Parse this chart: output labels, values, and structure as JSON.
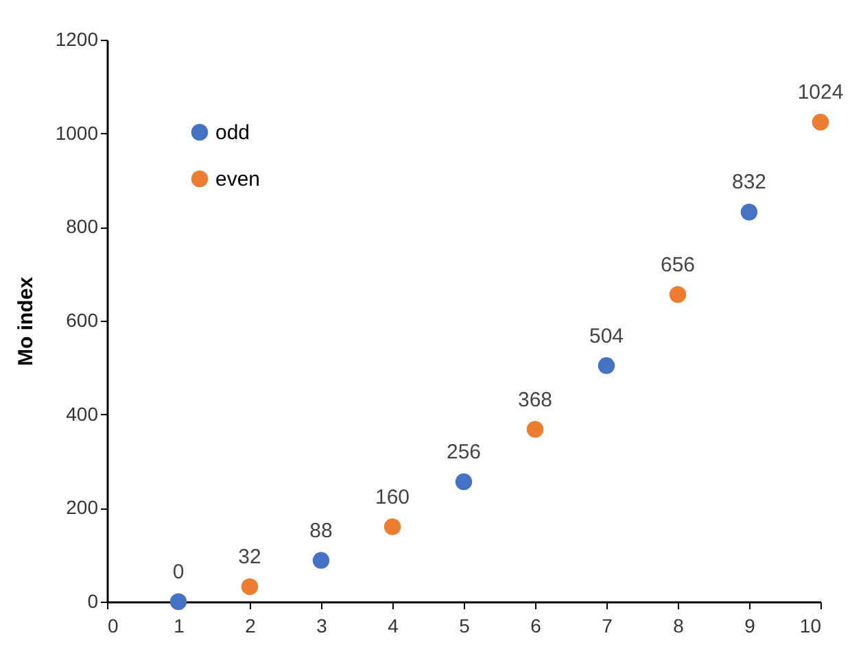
{
  "chart_data": {
    "type": "scatter",
    "ylabel": "Mo index",
    "series": [
      {
        "name": "odd",
        "color": "#4472c4",
        "x": [
          1,
          3,
          5,
          7,
          9
        ],
        "values": [
          0,
          88,
          256,
          504,
          832
        ]
      },
      {
        "name": "even",
        "color": "#ed7d31",
        "x": [
          2,
          4,
          6,
          8,
          10
        ],
        "values": [
          32,
          160,
          368,
          656,
          1024
        ]
      }
    ],
    "xlim": [
      0,
      10
    ],
    "xticks": [
      0,
      1,
      2,
      3,
      4,
      5,
      6,
      7,
      8,
      9,
      10
    ],
    "ylim": [
      0,
      1200
    ],
    "yticks": [
      0,
      200,
      400,
      600,
      800,
      1000,
      1200
    ],
    "data_labels": true,
    "grid": false,
    "legend": "top left",
    "marker": "circle"
  }
}
